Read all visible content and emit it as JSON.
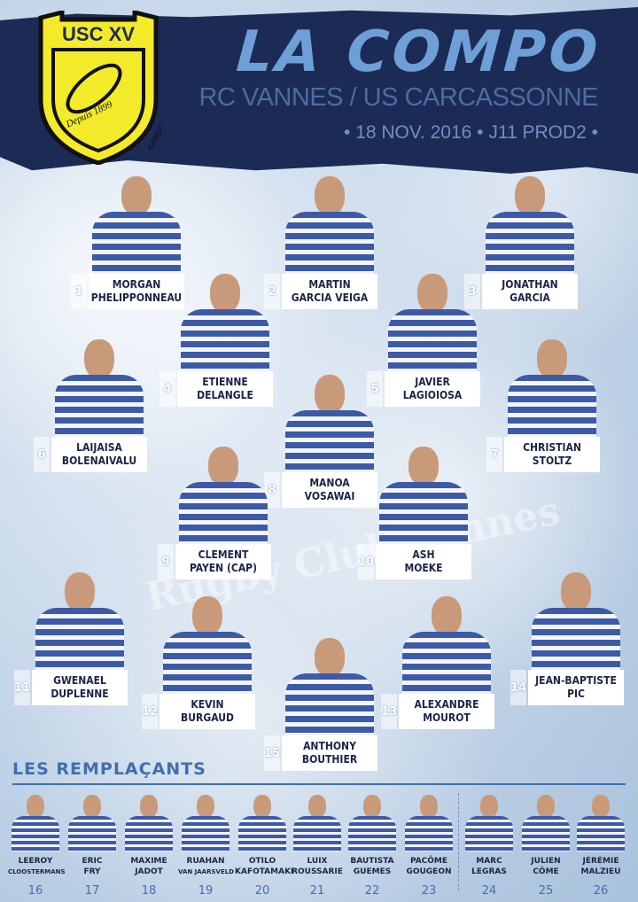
{
  "header": {
    "logo_text": "USC XV",
    "logo_motto": "Depuis 1899",
    "logo_city": "CARCASSONNE",
    "title": "LA COMPO",
    "match": "RC VANNES / US CARCASSONNE",
    "date": "• 18 NOV. 2016 • J11 PROD2 •"
  },
  "watermark": "Rugby Club Vannes",
  "colors": {
    "banner": "#1c2b55",
    "title": "#6e9fd6",
    "logo_yellow": "#f3ea2a",
    "jersey_blue": "#3d5aa8"
  },
  "starters": [
    {
      "number": "1",
      "first": "MORGAN",
      "last": "PHELIPPONNEAU"
    },
    {
      "number": "2",
      "first": "MARTIN",
      "last": "GARCIA VEIGA"
    },
    {
      "number": "3",
      "first": "JONATHAN",
      "last": "GARCIA"
    },
    {
      "number": "4",
      "first": "ETIENNE",
      "last": "DELANGLE"
    },
    {
      "number": "5",
      "first": "JAVIER",
      "last": "LAGIOIOSA"
    },
    {
      "number": "6",
      "first": "LAIJAISA",
      "last": "BOLENAIVALU"
    },
    {
      "number": "7",
      "first": "CHRISTIAN",
      "last": "STOLTZ"
    },
    {
      "number": "8",
      "first": "MANOA",
      "last": "VOSAWAI"
    },
    {
      "number": "9",
      "first": "CLEMENT",
      "last": "PAYEN (CAP)"
    },
    {
      "number": "10",
      "first": "ASH",
      "last": "MOEKE"
    },
    {
      "number": "11",
      "first": "GWENAEL",
      "last": "DUPLENNE"
    },
    {
      "number": "12",
      "first": "KEVIN",
      "last": "BURGAUD"
    },
    {
      "number": "13",
      "first": "ALEXANDRE",
      "last": "MOUROT"
    },
    {
      "number": "14",
      "first": "JEAN-BAPTISTE",
      "last": "PIC"
    },
    {
      "number": "15",
      "first": "ANTHONY",
      "last": "BOUTHIER"
    }
  ],
  "subs_title": "LES REMPLAÇANTS",
  "substitutes": [
    {
      "number": "16",
      "first": "LEEROY",
      "last": "CLOOSTERMANS"
    },
    {
      "number": "17",
      "first": "ERIC",
      "last": "FRY"
    },
    {
      "number": "18",
      "first": "MAXIME",
      "last": "JADOT"
    },
    {
      "number": "19",
      "first": "RUAHAN",
      "last": "VAN JAARSVELD"
    },
    {
      "number": "20",
      "first": "OTILO",
      "last": "KAFOTAMAKI"
    },
    {
      "number": "21",
      "first": "LUIX",
      "last": "ROUSSARIE"
    },
    {
      "number": "22",
      "first": "BAUTISTA",
      "last": "GUEMES"
    },
    {
      "number": "23",
      "first": "PACÔME",
      "last": "GOUGEON"
    },
    {
      "number": "24",
      "first": "MARC",
      "last": "LEGRAS"
    },
    {
      "number": "25",
      "first": "JULIEN",
      "last": "CÔME"
    },
    {
      "number": "26",
      "first": "JÉRÉMIE",
      "last": "MALZIEU"
    }
  ]
}
